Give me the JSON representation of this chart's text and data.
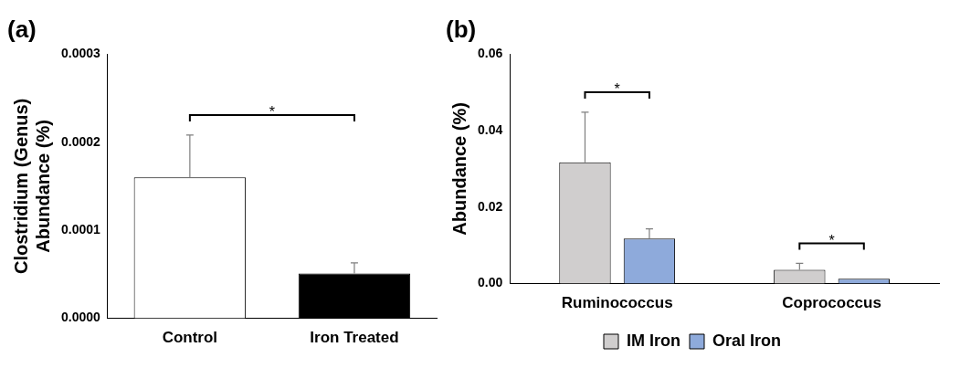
{
  "chart_data": [
    {
      "type": "bar",
      "title": "(a)",
      "ylabel": "Clostridium (Genus)\nAbundance (%)",
      "categories": [
        "Control",
        "Iron Treated"
      ],
      "values": [
        0.00016,
        5.1e-05
      ],
      "colors": [
        "#ffffff",
        "#000000"
      ],
      "errors": [
        [
          0.00016,
          0.000208
        ],
        [
          5.1e-05,
          6.3e-05
        ]
      ],
      "ylim": [
        0,
        0.0003
      ],
      "yticks": [
        {
          "value": 0,
          "label": "0.0000"
        },
        {
          "value": 0.0001,
          "label": "0.0001"
        },
        {
          "value": 0.0002,
          "label": "0.0002"
        },
        {
          "value": 0.0003,
          "label": "0.0003"
        }
      ],
      "annotations": [
        "*"
      ],
      "grid": false,
      "legend": false
    },
    {
      "type": "bar",
      "title": "(b)",
      "ylabel": "Abundance (%)",
      "categories": [
        "Ruminococcus",
        "Coprococcus"
      ],
      "series": [
        {
          "name": "IM Iron",
          "color": "#d0cece",
          "values": [
            0.0317,
            0.0036
          ],
          "errors": [
            [
              0.0317,
              0.0448
            ],
            [
              0.0036,
              0.0053
            ]
          ]
        },
        {
          "name": "Oral Iron",
          "color": "#8eaadb",
          "values": [
            0.0118,
            0.0013
          ],
          "errors": [
            [
              0.0118,
              0.0143
            ],
            null
          ]
        }
      ],
      "ylim": [
        0,
        0.06
      ],
      "yticks": [
        {
          "value": 0,
          "label": "0.00"
        },
        {
          "value": 0.02,
          "label": "0.02"
        },
        {
          "value": 0.04,
          "label": "0.04"
        },
        {
          "value": 0.06,
          "label": "0.06"
        }
      ],
      "annotations": [
        "*",
        "*"
      ],
      "grid": false,
      "legend": "bottom"
    }
  ]
}
